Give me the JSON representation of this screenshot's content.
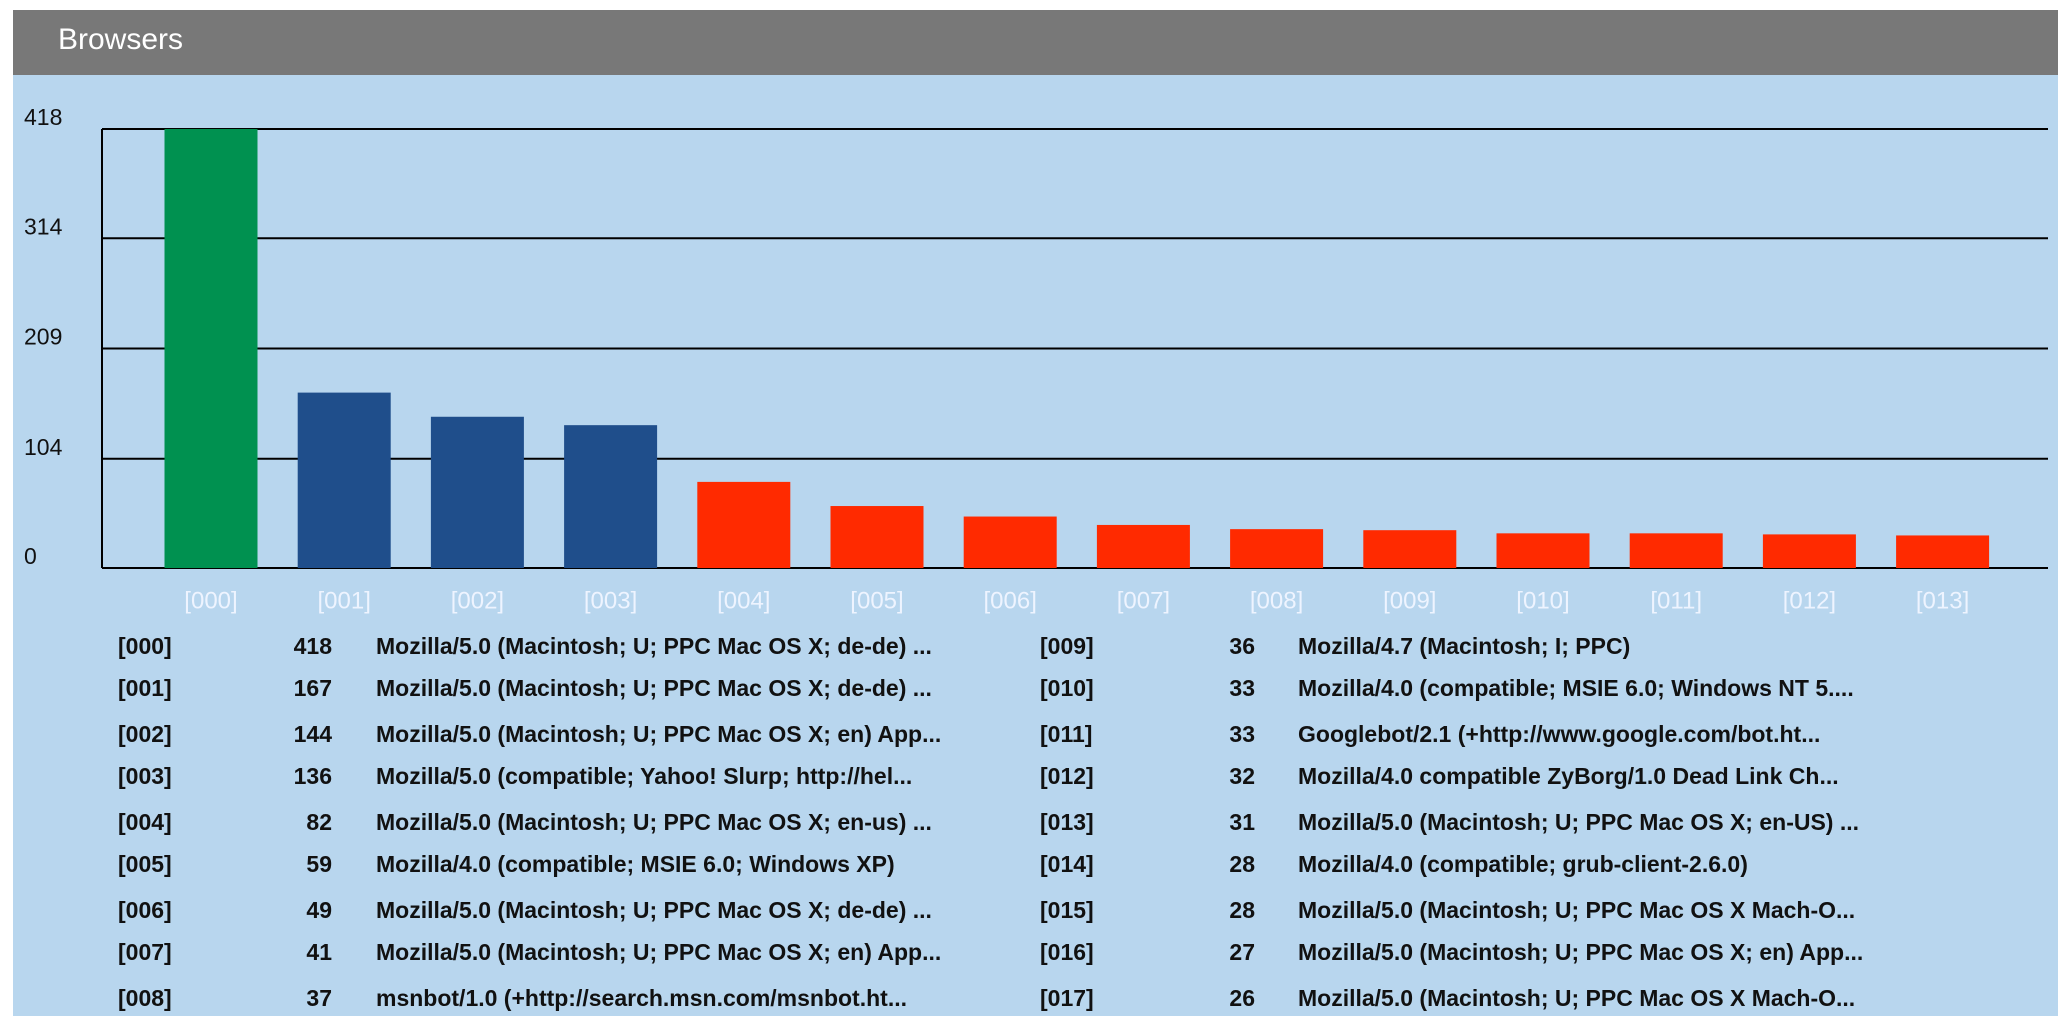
{
  "header": {
    "title": "Browsers"
  },
  "chart_data": {
    "type": "bar",
    "categories": [
      "[000]",
      "[001]",
      "[002]",
      "[003]",
      "[004]",
      "[005]",
      "[006]",
      "[007]",
      "[008]",
      "[009]",
      "[010]",
      "[011]",
      "[012]",
      "[013]"
    ],
    "values": [
      418,
      167,
      144,
      136,
      82,
      59,
      49,
      41,
      37,
      36,
      33,
      33,
      32,
      31
    ],
    "colors": [
      "#009150",
      "#1f4e8b",
      "#1f4e8b",
      "#1f4e8b",
      "#ff2a00",
      "#ff2a00",
      "#ff2a00",
      "#ff2a00",
      "#ff2a00",
      "#ff2a00",
      "#ff2a00",
      "#ff2a00",
      "#ff2a00",
      "#ff2a00"
    ],
    "ylim": [
      0,
      418
    ],
    "yticks": [
      0,
      104,
      209,
      314,
      418
    ],
    "grid": true
  },
  "table": {
    "rows": [
      [
        "[000]",
        418,
        "Mozilla/5.0 (Macintosh; U; PPC Mac OS X; de-de) ..."
      ],
      [
        "[001]",
        167,
        "Mozilla/5.0 (Macintosh; U; PPC Mac OS X; de-de) ..."
      ],
      [
        "[002]",
        144,
        "Mozilla/5.0 (Macintosh; U; PPC Mac OS X; en) App..."
      ],
      [
        "[003]",
        136,
        "Mozilla/5.0 (compatible; Yahoo! Slurp; http://hel..."
      ],
      [
        "[004]",
        82,
        "Mozilla/5.0 (Macintosh; U; PPC Mac OS X; en-us) ..."
      ],
      [
        "[005]",
        59,
        "Mozilla/4.0 (compatible; MSIE 6.0; Windows XP)"
      ],
      [
        "[006]",
        49,
        "Mozilla/5.0 (Macintosh; U; PPC Mac OS X; de-de) ..."
      ],
      [
        "[007]",
        41,
        "Mozilla/5.0 (Macintosh; U; PPC Mac OS X; en) App..."
      ],
      [
        "[008]",
        37,
        "msnbot/1.0 (+http://search.msn.com/msnbot.ht..."
      ],
      [
        "[009]",
        36,
        "Mozilla/4.7 (Macintosh; I; PPC)"
      ],
      [
        "[010]",
        33,
        "Mozilla/4.0 (compatible; MSIE 6.0; Windows NT 5...."
      ],
      [
        "[011]",
        33,
        "Googlebot/2.1 (+http://www.google.com/bot.ht..."
      ],
      [
        "[012]",
        32,
        "Mozilla/4.0 compatible ZyBorg/1.0 Dead Link Ch..."
      ],
      [
        "[013]",
        31,
        "Mozilla/5.0 (Macintosh; U; PPC Mac OS X; en-US) ..."
      ],
      [
        "[014]",
        28,
        "Mozilla/4.0 (compatible; grub-client-2.6.0)"
      ],
      [
        "[015]",
        28,
        "Mozilla/5.0 (Macintosh; U; PPC Mac OS X Mach-O..."
      ],
      [
        "[016]",
        27,
        "Mozilla/5.0 (Macintosh; U; PPC Mac OS X; en) App..."
      ],
      [
        "[017]",
        26,
        "Mozilla/5.0 (Macintosh; U; PPC Mac OS X Mach-O..."
      ]
    ]
  }
}
